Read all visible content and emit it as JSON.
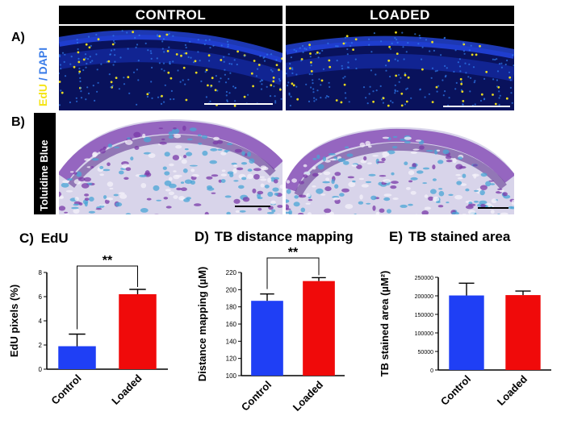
{
  "headers": {
    "control": "CONTROL",
    "loaded": "LOADED"
  },
  "rows": {
    "a": {
      "letter": "A)",
      "stain_part1": "EdU",
      "stain_sep": " / ",
      "stain_part2": "DAPI"
    },
    "b": {
      "letter": "B)",
      "stain": "Toluidine Blue"
    }
  },
  "colors": {
    "control": "#1f3ff5",
    "loaded": "#f00a0a",
    "edu": "#f5e51b",
    "dapi": "#2f7cf0"
  },
  "chart_data": [
    {
      "type": "bar",
      "panel": "C)",
      "title": "EdU",
      "categories": [
        "Control",
        "Loaded"
      ],
      "values": [
        1.9,
        6.2
      ],
      "errors": [
        1.0,
        0.4
      ],
      "ylabel": "EdU pixels (%)",
      "ylim": [
        0,
        8
      ],
      "yticks": [
        0,
        2,
        4,
        6,
        8
      ],
      "significance": "**"
    },
    {
      "type": "bar",
      "panel": "D)",
      "title": "TB distance mapping",
      "categories": [
        "Control",
        "Loaded"
      ],
      "values": [
        187,
        210
      ],
      "errors": [
        8,
        4
      ],
      "ylabel": "Distance mapping (µM)",
      "ylim": [
        100,
        220
      ],
      "yticks": [
        100,
        120,
        140,
        160,
        180,
        200,
        220
      ],
      "significance": "**"
    },
    {
      "type": "bar",
      "panel": "E)",
      "title": "TB stained area",
      "categories": [
        "Control",
        "Loaded"
      ],
      "values": [
        201000,
        202000
      ],
      "errors": [
        33000,
        11000
      ],
      "ylabel": "TB stained area (µM²)",
      "ylim": [
        0,
        250000
      ],
      "yticks": [
        0,
        50000,
        100000,
        150000,
        200000,
        250000
      ],
      "significance": ""
    }
  ]
}
